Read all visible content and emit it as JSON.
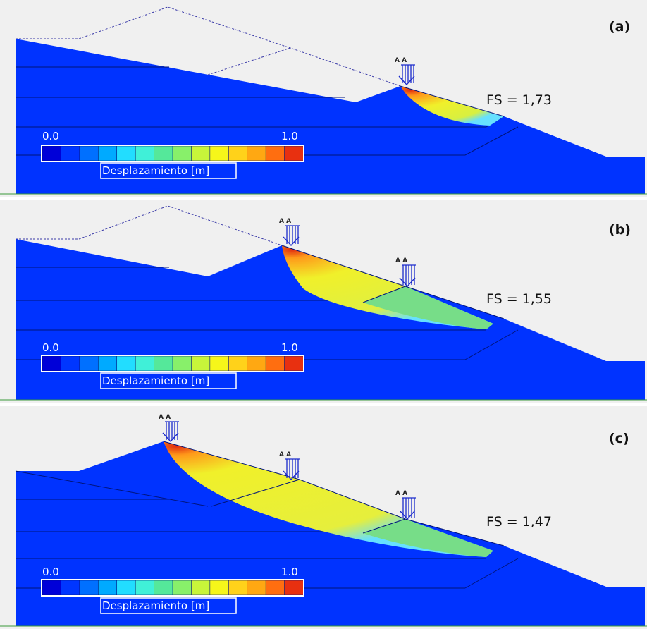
{
  "panels": [
    {
      "tag": "(a)",
      "fs": "FS = 1,73"
    },
    {
      "tag": "(b)",
      "fs": "FS = 1,55"
    },
    {
      "tag": "(c)",
      "fs": "FS = 1,47"
    }
  ],
  "legend": {
    "min": "0.0",
    "max": "1.0",
    "title": "Desplazamiento [m]",
    "colors": [
      "#0000d8",
      "#0036ff",
      "#0070ff",
      "#00aaff",
      "#22ddff",
      "#40f0d8",
      "#55e89a",
      "#88f06a",
      "#c8f53a",
      "#f6f61a",
      "#ffd21a",
      "#ffa812",
      "#ff6e10",
      "#e83010"
    ]
  },
  "load_marker": "A A",
  "colors": {
    "background": "#f0f0f0",
    "ground": "#0033ff",
    "yellow": "#e6ef3c",
    "green": "#77dd88",
    "orange": "#ff8a1a",
    "red": "#e02a10",
    "grid": "#3a9a3a"
  }
}
